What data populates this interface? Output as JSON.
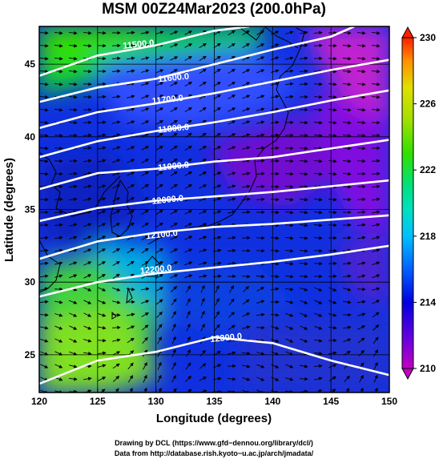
{
  "chart_data": {
    "type": "heatmap",
    "title": "MSM 00Z24Mar2023 (200.0hPa)",
    "xlabel": "Longitude (degrees)",
    "ylabel": "Latitude  (degrees)",
    "xlim": [
      120,
      150
    ],
    "ylim": [
      22.4,
      47.6
    ],
    "x_ticks": [
      120,
      125,
      130,
      135,
      140,
      145,
      150
    ],
    "x_tick_labels": [
      "120",
      "125",
      "130",
      "135",
      "140",
      "145",
      "150"
    ],
    "y_ticks": [
      25,
      30,
      35,
      40,
      45
    ],
    "y_tick_labels": [
      "25",
      "30",
      "35",
      "40",
      "45"
    ],
    "grid": true,
    "colorbar": {
      "min": 210,
      "max": 230,
      "ticks": [
        210,
        214,
        218,
        222,
        226,
        230
      ],
      "tick_labels": [
        "210",
        "214",
        "218",
        "222",
        "226",
        "230"
      ],
      "colors": [
        "#c000c0",
        "#6000e0",
        "#0000e0",
        "#0060ff",
        "#00c0ff",
        "#00e0c0",
        "#00e080",
        "#30e000",
        "#a0e000",
        "#e0e000",
        "#ff9000",
        "#ff2000"
      ]
    },
    "contours": [
      {
        "label": "11500.0",
        "points": [
          [
            120.0,
            44.2
          ],
          [
            125.0,
            45.6
          ],
          [
            130.0,
            46.3
          ],
          [
            135.0,
            47.3
          ],
          [
            138.0,
            47.6
          ]
        ]
      },
      {
        "label": "11600.0",
        "points": [
          [
            120.0,
            42.4
          ],
          [
            125.0,
            43.4
          ],
          [
            130.0,
            44.0
          ],
          [
            135.0,
            45.0
          ],
          [
            140.0,
            46.0
          ],
          [
            145.0,
            46.9
          ],
          [
            147.0,
            47.6
          ]
        ]
      },
      {
        "label": "11700.0",
        "points": [
          [
            120.0,
            40.6
          ],
          [
            125.0,
            41.7
          ],
          [
            130.0,
            42.3
          ],
          [
            135.0,
            43.0
          ],
          [
            140.0,
            43.8
          ],
          [
            145.0,
            44.6
          ],
          [
            150.0,
            45.3
          ]
        ]
      },
      {
        "label": "11800.0",
        "points": [
          [
            120.0,
            38.6
          ],
          [
            125.0,
            39.7
          ],
          [
            130.0,
            40.4
          ],
          [
            135.0,
            41.0
          ],
          [
            140.0,
            41.7
          ],
          [
            145.0,
            42.5
          ],
          [
            150.0,
            43.2
          ]
        ]
      },
      {
        "label": "11900.0",
        "points": [
          [
            120.0,
            36.4
          ],
          [
            125.0,
            37.5
          ],
          [
            130.0,
            37.8
          ],
          [
            135.0,
            38.3
          ],
          [
            140.0,
            38.6
          ],
          [
            145.0,
            39.2
          ],
          [
            150.0,
            39.8
          ]
        ]
      },
      {
        "label": "12000.0",
        "points": [
          [
            120.0,
            34.2
          ],
          [
            125.0,
            35.1
          ],
          [
            130.0,
            35.6
          ],
          [
            135.0,
            35.9
          ],
          [
            140.0,
            36.2
          ],
          [
            145.0,
            36.6
          ],
          [
            150.0,
            37.0
          ]
        ]
      },
      {
        "label": "12100.0",
        "points": [
          [
            120.0,
            31.6
          ],
          [
            125.0,
            32.8
          ],
          [
            130.0,
            33.4
          ],
          [
            135.0,
            33.8
          ],
          [
            140.0,
            34.0
          ],
          [
            145.0,
            34.3
          ],
          [
            150.0,
            34.6
          ]
        ]
      },
      {
        "label": "12200.0",
        "points": [
          [
            120.0,
            29.0
          ],
          [
            125.0,
            30.0
          ],
          [
            130.0,
            30.6
          ],
          [
            135.0,
            31.0
          ],
          [
            140.0,
            31.4
          ],
          [
            145.0,
            31.9
          ],
          [
            150.0,
            32.5
          ]
        ]
      },
      {
        "label": "12300.0",
        "points": [
          [
            120.0,
            23.0
          ],
          [
            125.0,
            24.6
          ],
          [
            130.0,
            25.2
          ],
          [
            135.0,
            26.2
          ],
          [
            140.0,
            25.8
          ],
          [
            145.0,
            24.6
          ],
          [
            150.0,
            23.6
          ]
        ]
      }
    ],
    "contour_label_positions": [
      [
        128.5,
        46.4
      ],
      [
        131.5,
        44.1
      ],
      [
        131.0,
        42.6
      ],
      [
        131.5,
        40.6
      ],
      [
        131.5,
        38.0
      ],
      [
        131.0,
        35.7
      ],
      [
        130.5,
        33.3
      ],
      [
        130.0,
        30.9
      ],
      [
        136.0,
        26.2
      ]
    ]
  },
  "credits": {
    "line1": "Drawing by DCL (https://www.gfd−dennou.org/library/dcl/)",
    "line2": "Data from http://database.rish.kyoto−u.ac.jp/arch/jmadata/"
  }
}
